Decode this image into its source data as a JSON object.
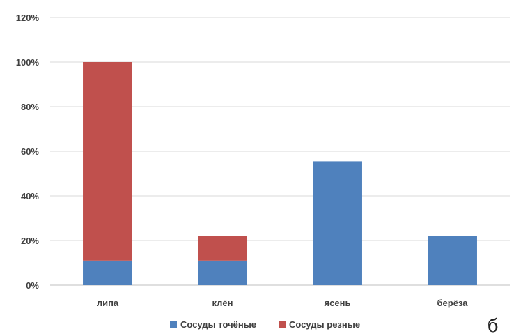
{
  "chart_data": {
    "type": "bar",
    "stacked": true,
    "categories": [
      "липа",
      "клён",
      "ясень",
      "берёза"
    ],
    "series": [
      {
        "name": "Сосуды точёные",
        "values": [
          11,
          11,
          55.5,
          22
        ],
        "color": "#4f81bd"
      },
      {
        "name": "Сосуды резные",
        "values": [
          89,
          11,
          0,
          0
        ],
        "color": "#c0504d"
      }
    ],
    "ylim": [
      0,
      120
    ],
    "yticks": [
      "0%",
      "20%",
      "40%",
      "60%",
      "80%",
      "100%",
      "120%"
    ],
    "grid": true,
    "legend_position": "bottom",
    "panel_label": "б",
    "colors": {
      "grid": "#d9d9d9",
      "axis": "#bfbfbf",
      "text": "#404040"
    }
  }
}
